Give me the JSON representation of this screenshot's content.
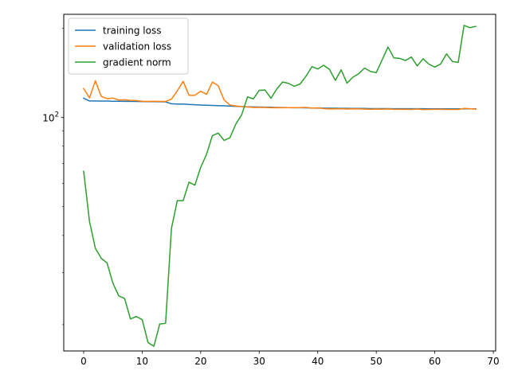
{
  "chart_data": {
    "type": "line",
    "title": "",
    "xlabel": "",
    "ylabel": "",
    "yscale": "log",
    "xlim": [
      -3.4,
      70.4
    ],
    "ylim": [
      16.3,
      223
    ],
    "grid": false,
    "legend_position": "top-left",
    "x_ticks": [
      0,
      10,
      20,
      30,
      40,
      50,
      60,
      70
    ],
    "x_tick_labels": [
      "0",
      "10",
      "20",
      "30",
      "40",
      "50",
      "60",
      "70"
    ],
    "y_major_ticks": [
      100
    ],
    "y_tick_labels": [
      {
        "base": "10",
        "exp": "2"
      }
    ],
    "y_minor_ticks": [
      20,
      30,
      40,
      50,
      60,
      70,
      80,
      90,
      200
    ],
    "x": [
      0,
      1,
      2,
      3,
      4,
      5,
      6,
      7,
      8,
      9,
      10,
      11,
      12,
      13,
      14,
      15,
      16,
      17,
      18,
      19,
      20,
      21,
      22,
      23,
      24,
      25,
      26,
      27,
      28,
      29,
      30,
      31,
      32,
      33,
      34,
      35,
      36,
      37,
      38,
      39,
      40,
      41,
      42,
      43,
      44,
      45,
      46,
      47,
      48,
      49,
      50,
      51,
      52,
      53,
      54,
      55,
      56,
      57,
      58,
      59,
      60,
      61,
      62,
      63,
      64,
      65,
      66,
      67
    ],
    "series": [
      {
        "name": "training loss",
        "color": "#1f77b4",
        "values": [
          116.2,
          113.7,
          113.7,
          113.6,
          113.6,
          113.5,
          113.5,
          113.4,
          113.4,
          113.3,
          113.2,
          113.1,
          113.1,
          113.0,
          112.9,
          111.3,
          111.0,
          111.0,
          110.7,
          110.4,
          110.2,
          110.0,
          109.8,
          109.7,
          109.5,
          109.3,
          109.1,
          108.9,
          108.7,
          108.6,
          108.5,
          108.4,
          108.3,
          108.2,
          108.1,
          108.0,
          107.9,
          107.9,
          107.8,
          107.7,
          107.6,
          107.6,
          107.5,
          107.5,
          107.4,
          107.4,
          107.3,
          107.3,
          107.3,
          107.2,
          107.2,
          107.2,
          107.2,
          107.1,
          107.1,
          107.1,
          107.1,
          107.1,
          107.1,
          107.0,
          107.0,
          107.0,
          107.0,
          107.0,
          107.0,
          107.0,
          107.0,
          107.0
        ]
      },
      {
        "name": "validation loss",
        "color": "#ff7f0e",
        "values": [
          125.2,
          116.5,
          133.1,
          117.9,
          115.8,
          116.3,
          114.6,
          114.8,
          114.3,
          114.1,
          113.5,
          113.3,
          113.5,
          113.3,
          113.3,
          115.4,
          123.0,
          132.5,
          118.9,
          118.9,
          122.7,
          119.8,
          131.7,
          128.0,
          114.6,
          110.2,
          109.4,
          108.9,
          108.6,
          108.2,
          108.2,
          108.2,
          107.9,
          108.0,
          107.9,
          108.0,
          108.0,
          108.0,
          108.2,
          107.6,
          107.8,
          107.2,
          106.9,
          107.0,
          107.1,
          106.8,
          107.0,
          106.9,
          106.8,
          106.6,
          106.8,
          106.7,
          106.9,
          106.6,
          106.6,
          106.6,
          106.5,
          106.8,
          106.4,
          106.5,
          106.6,
          106.6,
          106.5,
          106.5,
          106.5,
          107.3,
          107.1,
          106.7
        ]
      },
      {
        "name": "gradient norm",
        "color": "#2ca02c",
        "values": [
          65.9,
          44.6,
          36.2,
          33.5,
          32.3,
          27.6,
          25.0,
          24.5,
          20.9,
          21.3,
          20.8,
          17.4,
          16.9,
          20.1,
          20.2,
          42.2,
          52.4,
          52.4,
          60.5,
          59.1,
          67.9,
          75.2,
          86.9,
          88.6,
          83.7,
          85.5,
          95.0,
          102.1,
          117.4,
          115.6,
          123.5,
          123.8,
          116.2,
          124.8,
          131.8,
          130.4,
          127.5,
          129.9,
          137.9,
          148.5,
          145.8,
          150.1,
          145.4,
          133.5,
          144.9,
          130.6,
          136.8,
          140.6,
          146.9,
          143.1,
          141.8,
          156.5,
          173.0,
          159.0,
          158.3,
          155.8,
          160.0,
          149.3,
          157.9,
          151.4,
          148.0,
          151.6,
          164.0,
          154.6,
          153.5,
          204.6,
          201.0,
          203.1
        ]
      }
    ]
  }
}
